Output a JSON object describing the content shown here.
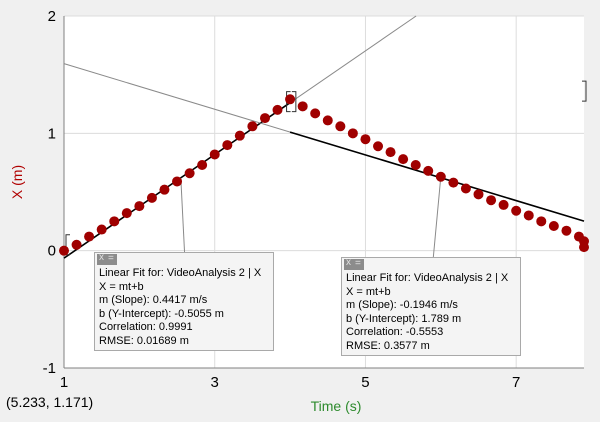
{
  "chart_data": {
    "type": "scatter",
    "xlabel": "Time (s)",
    "ylabel": "X (m)",
    "xlim": [
      1,
      7.9
    ],
    "ylim": [
      -1,
      2
    ],
    "x_ticks": [
      "1",
      "3",
      "5",
      "7"
    ],
    "y_ticks": [
      "-1",
      "0",
      "1",
      "2"
    ],
    "grid": true,
    "marker_color": "#a00000",
    "series": [
      {
        "x": [
          1.0,
          1.167,
          1.333,
          1.5,
          1.667,
          1.833,
          2.0,
          2.167,
          2.333,
          2.5,
          2.667,
          2.833,
          3.0,
          3.167,
          3.333,
          3.5,
          3.667,
          3.833,
          4.0,
          4.167,
          4.333,
          4.5,
          4.667,
          4.833,
          5.0,
          5.167,
          5.333,
          5.5,
          5.667,
          5.833,
          6.0,
          6.167,
          6.333,
          6.5,
          6.667,
          6.833,
          7.0,
          7.167,
          7.333,
          7.5,
          7.667,
          7.833,
          7.9,
          7.9
        ],
        "y": [
          0.0,
          0.05,
          0.12,
          0.18,
          0.25,
          0.32,
          0.38,
          0.45,
          0.52,
          0.59,
          0.66,
          0.73,
          0.82,
          0.9,
          0.98,
          1.06,
          1.13,
          1.2,
          1.29,
          1.23,
          1.17,
          1.11,
          1.06,
          1.0,
          0.95,
          0.89,
          0.84,
          0.78,
          0.73,
          0.68,
          0.63,
          0.58,
          0.53,
          0.48,
          0.43,
          0.39,
          0.34,
          0.3,
          0.25,
          0.21,
          0.17,
          0.12,
          0.08,
          0.03
        ]
      }
    ],
    "fits": [
      {
        "title": "Linear Fit for: VideoAnalysis 2 | X",
        "equation": "X = mt+b",
        "slope": "m (Slope): 0.4417 m/s",
        "intercept": "b (Y-Intercept): -0.5055 m",
        "correlation": "Correlation: 0.9991",
        "rmse": "RMSE: 0.01689 m",
        "m": 0.4417,
        "b": -0.5055,
        "range": [
          1,
          4.0
        ]
      },
      {
        "title": "Linear Fit for: VideoAnalysis 2 | X",
        "equation": "X = mt+b",
        "slope": "m (Slope): -0.1946 m/s",
        "intercept": "b (Y-Intercept): 1.789 m",
        "correlation": "Correlation: -0.5553",
        "rmse": "RMSE: 0.3577 m",
        "m": -0.1946,
        "b": 1.789,
        "range": [
          4.0,
          7.9
        ]
      }
    ]
  },
  "status": {
    "coordinates": "(5.233, 1.171)"
  }
}
